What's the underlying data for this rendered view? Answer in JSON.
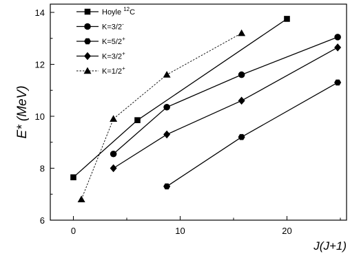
{
  "chart_data": {
    "type": "line",
    "xlabel": "J(J+1)",
    "ylabel": "E* (MeV)",
    "xlim": [
      -2,
      26
    ],
    "ylim": [
      6,
      14.2
    ],
    "x_ticks": [
      "0",
      "10",
      "20"
    ],
    "y_ticks": [
      "6",
      "8",
      "10",
      "12",
      "14"
    ],
    "legend_position": "top-left",
    "series": [
      {
        "name": "Hoyle 12C",
        "label_main": "Hoyle ",
        "label_sup": "12",
        "label_tail": "C",
        "marker": "square",
        "dashed": false,
        "x": [
          0,
          6,
          20
        ],
        "y": [
          7.65,
          9.85,
          13.75
        ]
      },
      {
        "name": "K=3/2-",
        "label_main": "K=3/2",
        "label_sup": "-",
        "label_tail": "",
        "marker": "circle",
        "dashed": false,
        "x": [
          3.75,
          8.75,
          15.75,
          24.75
        ],
        "y": [
          8.55,
          10.35,
          11.6,
          13.05
        ]
      },
      {
        "name": "K=5/2+",
        "label_main": "K=5/2",
        "label_sup": "+",
        "label_tail": "",
        "marker": "hexagon",
        "dashed": false,
        "x": [
          8.75,
          15.75,
          24.75
        ],
        "y": [
          7.3,
          9.2,
          11.3
        ]
      },
      {
        "name": "K=3/2+",
        "label_main": "K=3/2",
        "label_sup": "+",
        "label_tail": "",
        "marker": "diamond",
        "dashed": false,
        "x": [
          3.75,
          8.75,
          15.75,
          24.75
        ],
        "y": [
          8.0,
          9.3,
          10.6,
          12.65
        ]
      },
      {
        "name": "K=1/2+",
        "label_main": "K=1/2",
        "label_sup": "+",
        "label_tail": "",
        "marker": "triangle",
        "dashed": true,
        "x": [
          0.75,
          3.75,
          8.75,
          15.75
        ],
        "y": [
          6.8,
          9.9,
          11.6,
          13.2
        ]
      }
    ]
  }
}
